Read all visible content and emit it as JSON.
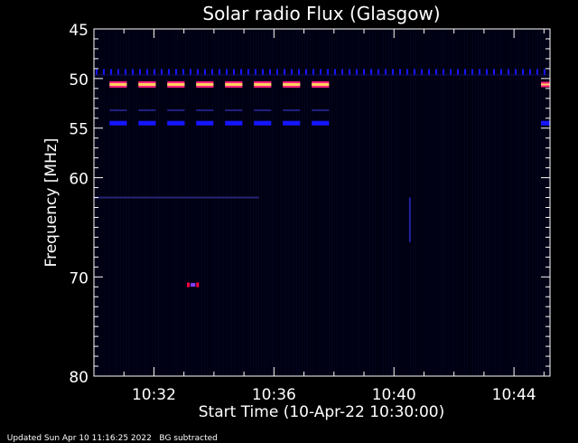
{
  "footer": {
    "updated": "Updated Sun Apr 10 11:16:25 2022",
    "note": "BG subtracted"
  },
  "chart_data": {
    "type": "heatmap",
    "title": "Solar radio Flux (Glasgow)",
    "xlabel": "Start Time (10-Apr-22 10:30:00)",
    "ylabel": "Frequency [MHz]",
    "x_range_minutes": [
      0,
      15.2
    ],
    "ylim": [
      45,
      80
    ],
    "y_inverted": true,
    "y_ticks": [
      45,
      50,
      55,
      60,
      70,
      80
    ],
    "x_ticks": [
      {
        "minute": 2,
        "label": "10:32"
      },
      {
        "minute": 6,
        "label": "10:36"
      },
      {
        "minute": 10,
        "label": "10:40"
      },
      {
        "minute": 14,
        "label": "10:44"
      }
    ],
    "background_color": "#000012",
    "colors": {
      "weak": "#0a0a3a",
      "medium": "#1515ff",
      "strong_core": "#ffd060",
      "strong_edge": "#ff2080",
      "burst": "#ff0040"
    },
    "bands": [
      {
        "freq": 49.5,
        "start_min": 0.0,
        "end_min": 15.2,
        "level": "medium",
        "style": "ticks"
      },
      {
        "freq": 50.6,
        "start_min": 0.4,
        "end_min": 8.1,
        "level": "strong",
        "style": "dashes"
      },
      {
        "freq": 53.2,
        "start_min": 0.4,
        "end_min": 8.1,
        "level": "weak",
        "style": "dashes"
      },
      {
        "freq": 54.5,
        "start_min": 0.4,
        "end_min": 8.1,
        "level": "medium",
        "style": "dashes"
      },
      {
        "freq": 62.0,
        "start_min": 0.0,
        "end_min": 5.5,
        "level": "weak",
        "style": "line"
      },
      {
        "freq": 70.8,
        "start_min": 3.1,
        "end_min": 3.5,
        "level": "burst",
        "style": "spot"
      },
      {
        "freq": 50.6,
        "start_min": 14.9,
        "end_min": 15.2,
        "level": "strong",
        "style": "spot"
      },
      {
        "freq": 54.5,
        "start_min": 14.9,
        "end_min": 15.2,
        "level": "medium",
        "style": "spot"
      }
    ]
  }
}
